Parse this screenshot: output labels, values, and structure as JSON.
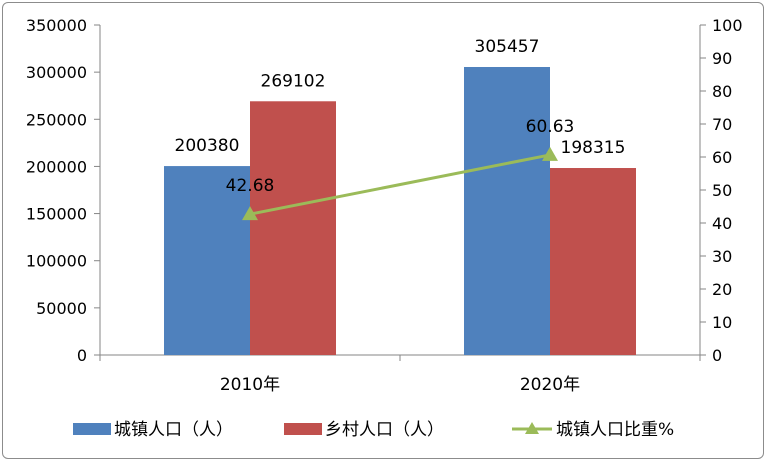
{
  "chart_data": {
    "type": "bar",
    "categories": [
      "2010年",
      "2020年"
    ],
    "series": [
      {
        "name": "城镇人口（人）",
        "values": [
          200380,
          305457
        ],
        "color": "#4f81bd",
        "axis": "left",
        "type": "bar"
      },
      {
        "name": "乡村人口（人）",
        "values": [
          269102,
          198315
        ],
        "color": "#c0504d",
        "axis": "left",
        "type": "bar"
      },
      {
        "name": "城镇人口比重%",
        "values": [
          42.68,
          60.63
        ],
        "color": "#9bbb59",
        "axis": "right",
        "type": "line",
        "marker": "triangle"
      }
    ],
    "data_labels": {
      "bar_0": [
        "200380",
        "305457"
      ],
      "bar_1": [
        "269102",
        "198315"
      ],
      "line": [
        "42.68",
        "60.63"
      ]
    },
    "y_left": {
      "lim": [
        0,
        350000
      ],
      "ticks": [
        "0",
        "50000",
        "100000",
        "150000",
        "200000",
        "250000",
        "300000",
        "350000"
      ]
    },
    "y_right": {
      "lim": [
        0,
        100
      ],
      "ticks": [
        "0",
        "10",
        "20",
        "30",
        "40",
        "50",
        "60",
        "70",
        "80",
        "90",
        "100"
      ]
    },
    "grid": false,
    "legend_position": "bottom"
  }
}
